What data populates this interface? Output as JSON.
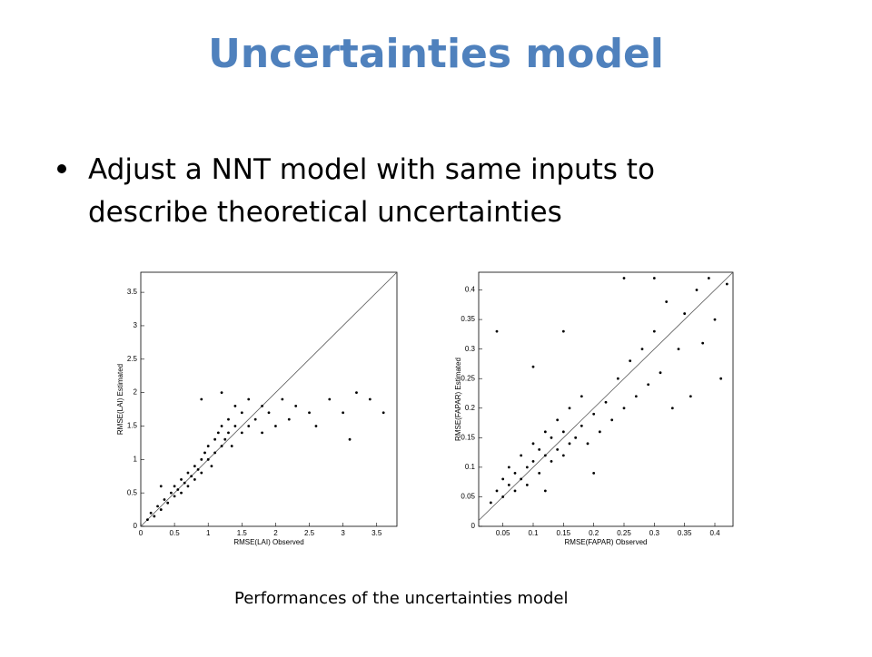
{
  "slide": {
    "title": "Uncertainties model",
    "bullets": [
      "Adjust a NNT model with same inputs to describe theoretical uncertainties"
    ],
    "caption": "Performances of the uncertainties model"
  },
  "chart_data": [
    {
      "type": "scatter",
      "xlabel": "RMSE(LAI) Observed",
      "ylabel": "RMSE(LAI) Estimated",
      "xlim": [
        0,
        3.8
      ],
      "ylim": [
        0,
        3.8
      ],
      "xticks": [
        0,
        0.5,
        1,
        1.5,
        2,
        2.5,
        3,
        3.5
      ],
      "yticks": [
        0,
        0.5,
        1,
        1.5,
        2,
        2.5,
        3,
        3.5
      ],
      "color": "#000000",
      "diagonal": true,
      "x": [
        0.1,
        0.15,
        0.2,
        0.25,
        0.3,
        0.35,
        0.4,
        0.45,
        0.5,
        0.5,
        0.55,
        0.6,
        0.6,
        0.65,
        0.7,
        0.7,
        0.75,
        0.8,
        0.8,
        0.85,
        0.9,
        0.9,
        0.95,
        1.0,
        1.0,
        1.05,
        1.1,
        1.1,
        1.15,
        1.2,
        1.2,
        1.25,
        1.3,
        1.3,
        1.35,
        1.4,
        1.4,
        1.5,
        1.5,
        1.6,
        1.6,
        1.7,
        1.8,
        1.8,
        1.9,
        2.0,
        2.1,
        2.2,
        2.3,
        2.5,
        2.6,
        2.8,
        3.0,
        3.1,
        3.2,
        3.4,
        3.6,
        0.9,
        1.2,
        0.3
      ],
      "values": [
        0.1,
        0.2,
        0.15,
        0.3,
        0.25,
        0.4,
        0.35,
        0.5,
        0.45,
        0.6,
        0.55,
        0.7,
        0.5,
        0.65,
        0.8,
        0.6,
        0.75,
        0.9,
        0.7,
        0.85,
        1.0,
        0.8,
        1.1,
        1.0,
        1.2,
        0.9,
        1.3,
        1.1,
        1.4,
        1.2,
        1.5,
        1.3,
        1.6,
        1.4,
        1.2,
        1.5,
        1.8,
        1.4,
        1.7,
        1.5,
        1.9,
        1.6,
        1.4,
        1.8,
        1.7,
        1.5,
        1.9,
        1.6,
        1.8,
        1.7,
        1.5,
        1.9,
        1.7,
        1.3,
        2.0,
        1.9,
        1.7,
        1.9,
        2.0,
        0.6
      ]
    },
    {
      "type": "scatter",
      "xlabel": "RMSE(FAPAR) Observed",
      "ylabel": "RMSE(FAPAR) Estimated",
      "xlim": [
        0.01,
        0.43
      ],
      "ylim": [
        0,
        0.43
      ],
      "xticks": [
        0.05,
        0.1,
        0.15,
        0.2,
        0.25,
        0.3,
        0.35,
        0.4
      ],
      "yticks": [
        0,
        0.05,
        0.1,
        0.15,
        0.2,
        0.25,
        0.3,
        0.35,
        0.4
      ],
      "color": "#000000",
      "diagonal": true,
      "x": [
        0.03,
        0.04,
        0.05,
        0.05,
        0.06,
        0.06,
        0.07,
        0.07,
        0.08,
        0.08,
        0.09,
        0.09,
        0.1,
        0.1,
        0.11,
        0.11,
        0.12,
        0.12,
        0.13,
        0.13,
        0.14,
        0.14,
        0.15,
        0.15,
        0.16,
        0.16,
        0.17,
        0.18,
        0.18,
        0.19,
        0.2,
        0.21,
        0.22,
        0.23,
        0.24,
        0.25,
        0.26,
        0.27,
        0.28,
        0.29,
        0.3,
        0.31,
        0.32,
        0.33,
        0.34,
        0.35,
        0.36,
        0.37,
        0.38,
        0.39,
        0.4,
        0.41,
        0.42,
        0.1,
        0.04,
        0.15,
        0.25,
        0.3,
        0.2,
        0.12
      ],
      "values": [
        0.04,
        0.06,
        0.05,
        0.08,
        0.07,
        0.1,
        0.06,
        0.09,
        0.08,
        0.12,
        0.1,
        0.07,
        0.11,
        0.14,
        0.09,
        0.13,
        0.12,
        0.16,
        0.11,
        0.15,
        0.13,
        0.18,
        0.12,
        0.16,
        0.14,
        0.2,
        0.15,
        0.17,
        0.22,
        0.14,
        0.19,
        0.16,
        0.21,
        0.18,
        0.25,
        0.2,
        0.28,
        0.22,
        0.3,
        0.24,
        0.33,
        0.26,
        0.38,
        0.2,
        0.3,
        0.36,
        0.22,
        0.4,
        0.31,
        0.42,
        0.35,
        0.25,
        0.41,
        0.27,
        0.33,
        0.33,
        0.42,
        0.42,
        0.09,
        0.06
      ]
    }
  ]
}
